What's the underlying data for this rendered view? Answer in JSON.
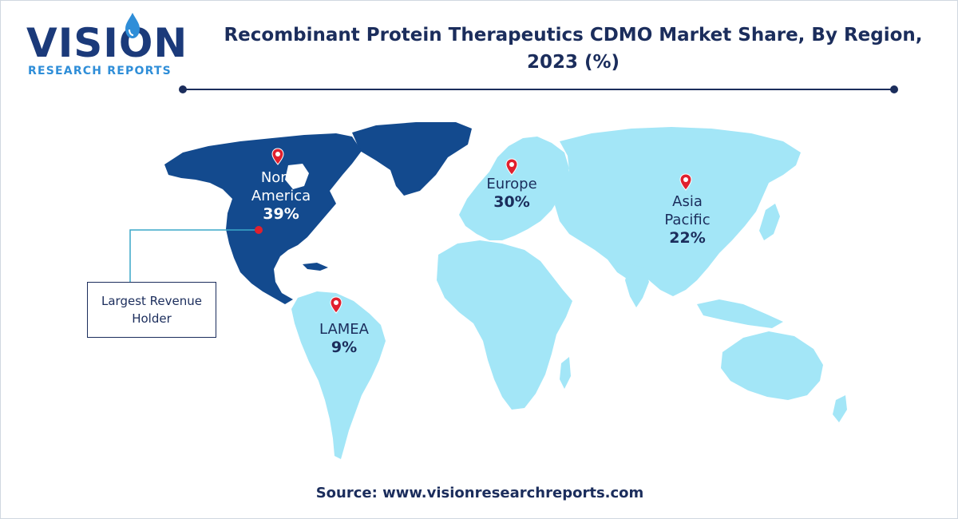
{
  "logo": {
    "word": "VISION",
    "subtitle": "RESEARCH REPORTS",
    "icon": "water-drop-icon"
  },
  "title": {
    "line1": "Recombinant Protein Therapeutics CDMO Market Share, By Region,",
    "line2": "2023 (%)"
  },
  "colors": {
    "highlight_region": "#134a8e",
    "other_regions": "#a3e6f7",
    "text_navy": "#1b2d5c",
    "pin_red": "#e0202e",
    "callout_line": "#3aa7c9"
  },
  "regions": [
    {
      "name_line1": "North",
      "name_line2": "America",
      "share": 39,
      "share_label": "39%",
      "highlighted": true
    },
    {
      "name_line1": "Europe",
      "name_line2": "",
      "share": 30,
      "share_label": "30%",
      "highlighted": false
    },
    {
      "name_line1": "Asia",
      "name_line2": "Pacific",
      "share": 22,
      "share_label": "22%",
      "highlighted": false
    },
    {
      "name_line1": "LAMEA",
      "name_line2": "",
      "share": 9,
      "share_label": "9%",
      "highlighted": false
    }
  ],
  "callout": {
    "line1": "Largest Revenue",
    "line2": "Holder"
  },
  "source": "Source: www.visionresearchreports.com"
}
